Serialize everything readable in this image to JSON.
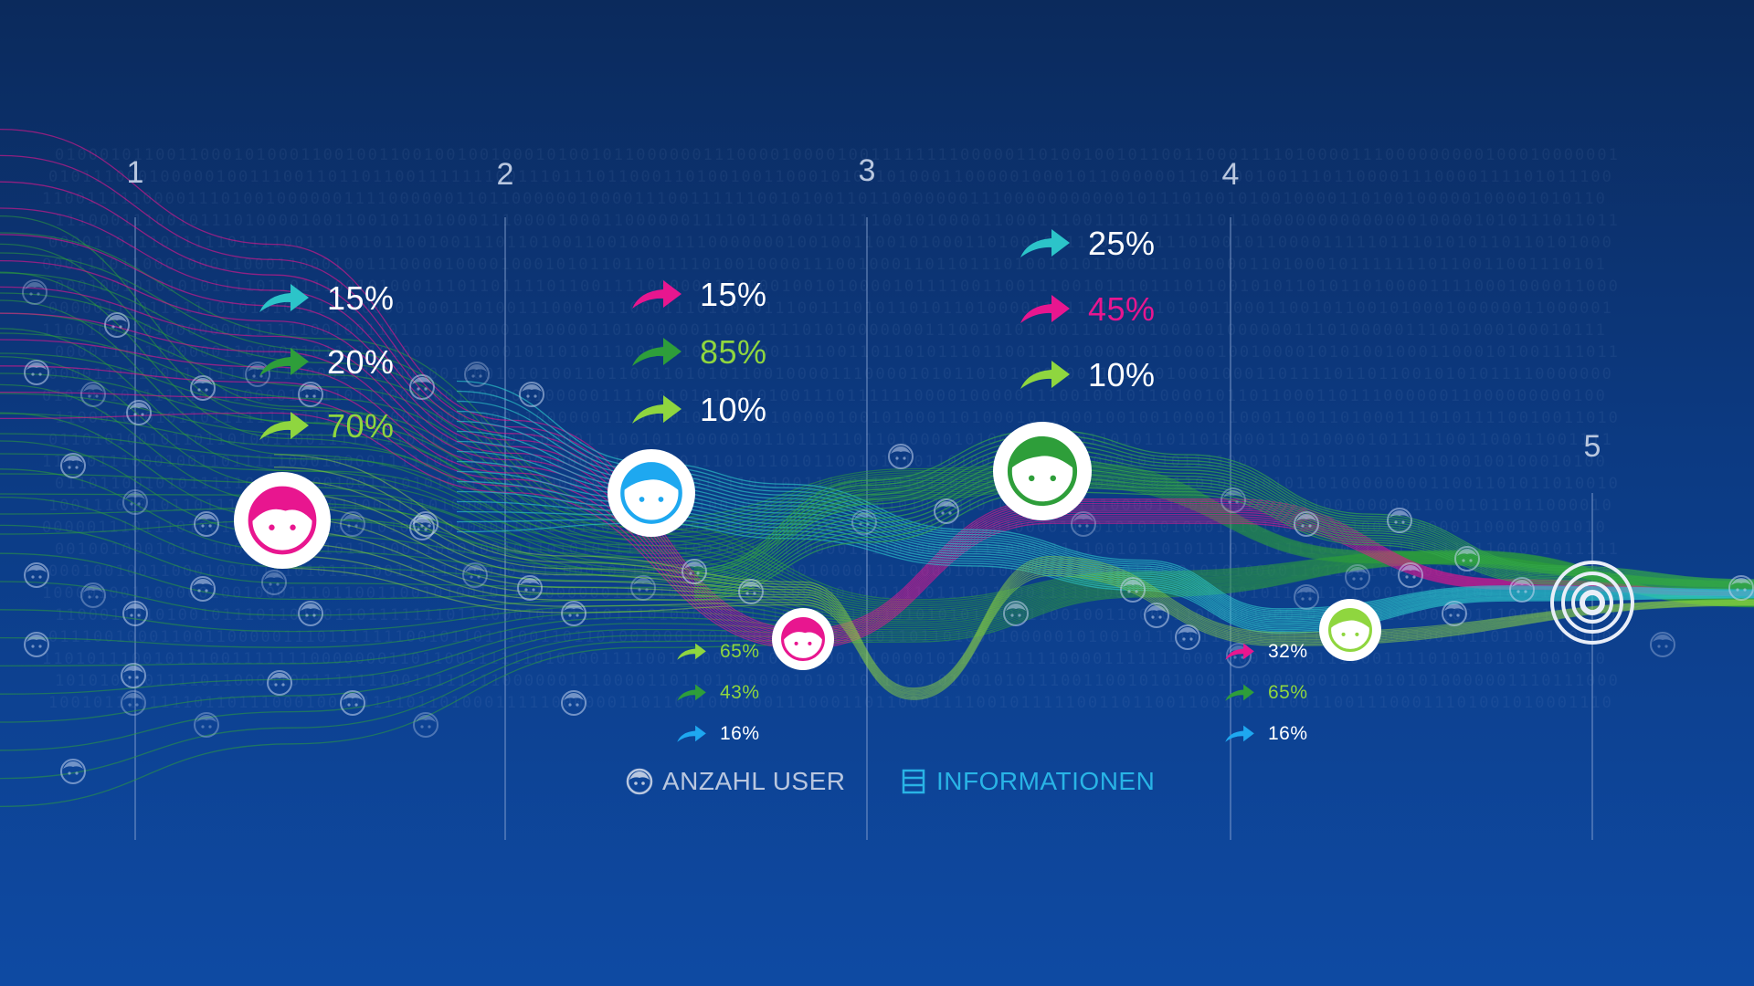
{
  "colors": {
    "cyan": "#2cc4c9",
    "magenta": "#e8168f",
    "green": "#2e9e3a",
    "lime": "#8fd63f",
    "blue": "#1ea8f0",
    "white": "#ffffff",
    "label": "#b9c7df",
    "legend_info": "#29b4e6"
  },
  "stages": [
    {
      "label": "1"
    },
    {
      "label": "2"
    },
    {
      "label": "3"
    },
    {
      "label": "4"
    },
    {
      "label": "5"
    }
  ],
  "groups": {
    "s1": [
      {
        "value": "15%",
        "arrow_color": "cyan",
        "text_color": "white"
      },
      {
        "value": "20%",
        "arrow_color": "green",
        "text_color": "white"
      },
      {
        "value": "70%",
        "arrow_color": "lime",
        "text_color": "lime"
      }
    ],
    "s2": [
      {
        "value": "15%",
        "arrow_color": "magenta",
        "text_color": "white"
      },
      {
        "value": "85%",
        "arrow_color": "green",
        "text_color": "lime"
      },
      {
        "value": "10%",
        "arrow_color": "lime",
        "text_color": "white"
      }
    ],
    "s3": [
      {
        "value": "25%",
        "arrow_color": "cyan",
        "text_color": "white"
      },
      {
        "value": "45%",
        "arrow_color": "magenta",
        "text_color": "magenta"
      },
      {
        "value": "10%",
        "arrow_color": "lime",
        "text_color": "white"
      }
    ],
    "small_a": [
      {
        "value": "65%",
        "arrow_color": "lime",
        "text_color": "lime"
      },
      {
        "value": "43%",
        "arrow_color": "green",
        "text_color": "lime"
      },
      {
        "value": "16%",
        "arrow_color": "blue",
        "text_color": "white"
      }
    ],
    "small_b": [
      {
        "value": "32%",
        "arrow_color": "magenta",
        "text_color": "white"
      },
      {
        "value": "65%",
        "arrow_color": "green",
        "text_color": "lime"
      },
      {
        "value": "16%",
        "arrow_color": "blue",
        "text_color": "white"
      }
    ]
  },
  "nodes": [
    {
      "icon": "girl-face-icon",
      "color": "magenta"
    },
    {
      "icon": "boy-face-icon",
      "color": "blue"
    },
    {
      "icon": "boy-face-icon",
      "color": "green"
    },
    {
      "icon": "girl-face-icon",
      "color": "magenta"
    },
    {
      "icon": "boy-face-icon",
      "color": "lime"
    }
  ],
  "target_icon": "target-icon",
  "legend": {
    "users_label": "ANZAHL USER",
    "users_icon": "user-face-icon",
    "info_label": "INFORMATIONEN",
    "info_icon": "stack-icon"
  }
}
